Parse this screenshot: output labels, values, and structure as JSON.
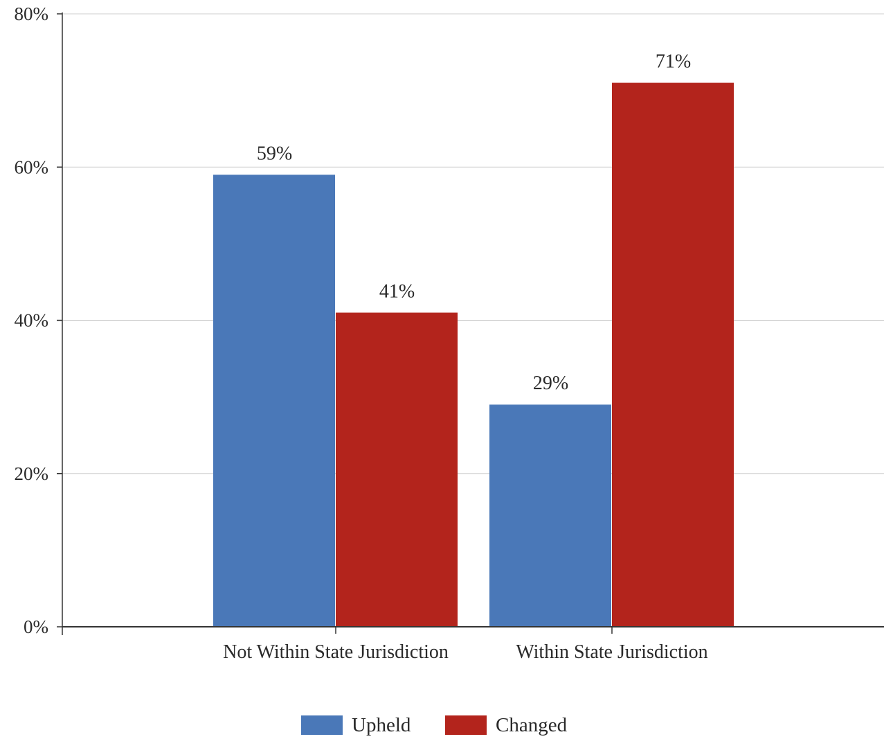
{
  "chart_data": {
    "type": "bar",
    "title": "",
    "xlabel": "",
    "ylabel": "",
    "categories": [
      "Not Within State Jurisdiction",
      "Within State Jurisdiction"
    ],
    "series": [
      {
        "name": "Upheld",
        "values": [
          59,
          29
        ],
        "color": "#4a78b8"
      },
      {
        "name": "Changed",
        "values": [
          41,
          71
        ],
        "color": "#b3241c"
      }
    ],
    "data_labels": [
      [
        "59%",
        "29%"
      ],
      [
        "41%",
        "71%"
      ]
    ],
    "ylim": [
      0,
      80
    ],
    "yticks": [
      0,
      20,
      40,
      60,
      80
    ],
    "ytick_labels": [
      "0%",
      "20%",
      "40%",
      "60%",
      "80%"
    ],
    "grid": true,
    "legend_position": "bottom-center"
  }
}
